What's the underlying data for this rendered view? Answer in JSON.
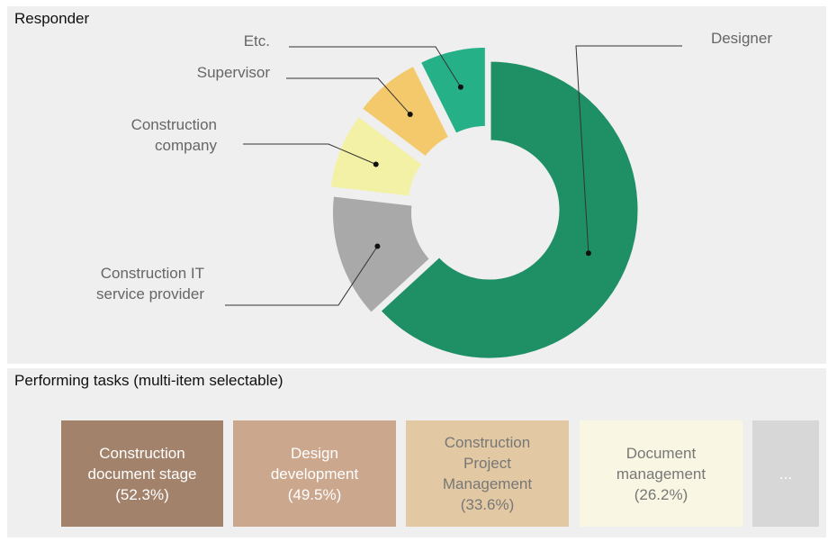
{
  "sections": {
    "responder_title": "Responder",
    "tasks_title": "Performing tasks (multi-item selectable)"
  },
  "chart_data": {
    "type": "pie",
    "variant": "donut",
    "title": "Responder",
    "slices": [
      {
        "label": "Designer",
        "value": 60,
        "color": "#1f8f66"
      },
      {
        "label": "Construction IT service provider",
        "value": 13,
        "color": "#a9a9a9"
      },
      {
        "label": "Construction company",
        "value": 8,
        "color": "#f3f1a6"
      },
      {
        "label": "Supervisor",
        "value": 7,
        "color": "#f3c96b"
      },
      {
        "label": "Etc.",
        "value": 7,
        "color": "#25b088"
      }
    ]
  },
  "label_text": {
    "designer": "Designer",
    "etc": "Etc.",
    "supervisor": "Supervisor",
    "construction_company": [
      "Construction",
      "company"
    ],
    "it_provider": [
      "Construction IT",
      "service provider"
    ]
  },
  "tasks": [
    {
      "lines": [
        "Construction",
        "document stage",
        "(52.3%)"
      ],
      "value": 52.3,
      "bg": "#a3826b",
      "fg": "#ffffff"
    },
    {
      "lines": [
        "Design",
        "development",
        "(49.5%)"
      ],
      "value": 49.5,
      "bg": "#cba78d",
      "fg": "#ffffff"
    },
    {
      "lines": [
        "Construction",
        "Project",
        "Management",
        "(33.6%)"
      ],
      "value": 33.6,
      "bg": "#e2c9a4",
      "fg": "#777777"
    },
    {
      "lines": [
        "Document",
        "management",
        "(26.2%)"
      ],
      "value": 26.2,
      "bg": "#faf6e4",
      "fg": "#777777"
    },
    {
      "lines": [
        "..."
      ],
      "bg": "#d7d7d7",
      "fg": "#ffffff"
    }
  ]
}
